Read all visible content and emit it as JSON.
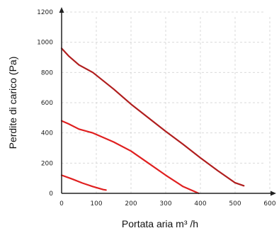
{
  "chart_data": {
    "type": "line",
    "title": "",
    "xlabel": "Portata aria m³ /h",
    "ylabel": "Perdite di carico (Pa)",
    "xlim": [
      0,
      600
    ],
    "ylim": [
      0,
      1200
    ],
    "x_ticks": [
      0,
      100,
      200,
      300,
      400,
      500,
      600
    ],
    "y_ticks": [
      0,
      200,
      400,
      600,
      800,
      1000,
      1200
    ],
    "grid": true,
    "series": [
      {
        "color": "#b01e1e",
        "points": [
          [
            0,
            960
          ],
          [
            20,
            910
          ],
          [
            50,
            850
          ],
          [
            90,
            800
          ],
          [
            150,
            690
          ],
          [
            200,
            590
          ],
          [
            300,
            410
          ],
          [
            350,
            325
          ],
          [
            400,
            235
          ],
          [
            450,
            150
          ],
          [
            500,
            70
          ],
          [
            525,
            50
          ]
        ]
      },
      {
        "color": "#e02020",
        "points": [
          [
            0,
            480
          ],
          [
            20,
            460
          ],
          [
            50,
            425
          ],
          [
            90,
            400
          ],
          [
            150,
            340
          ],
          [
            200,
            280
          ],
          [
            250,
            200
          ],
          [
            300,
            120
          ],
          [
            350,
            45
          ],
          [
            380,
            15
          ],
          [
            395,
            0
          ]
        ]
      },
      {
        "color": "#e02020",
        "points": [
          [
            0,
            120
          ],
          [
            30,
            95
          ],
          [
            60,
            68
          ],
          [
            90,
            45
          ],
          [
            120,
            25
          ],
          [
            128,
            22
          ]
        ]
      }
    ]
  }
}
